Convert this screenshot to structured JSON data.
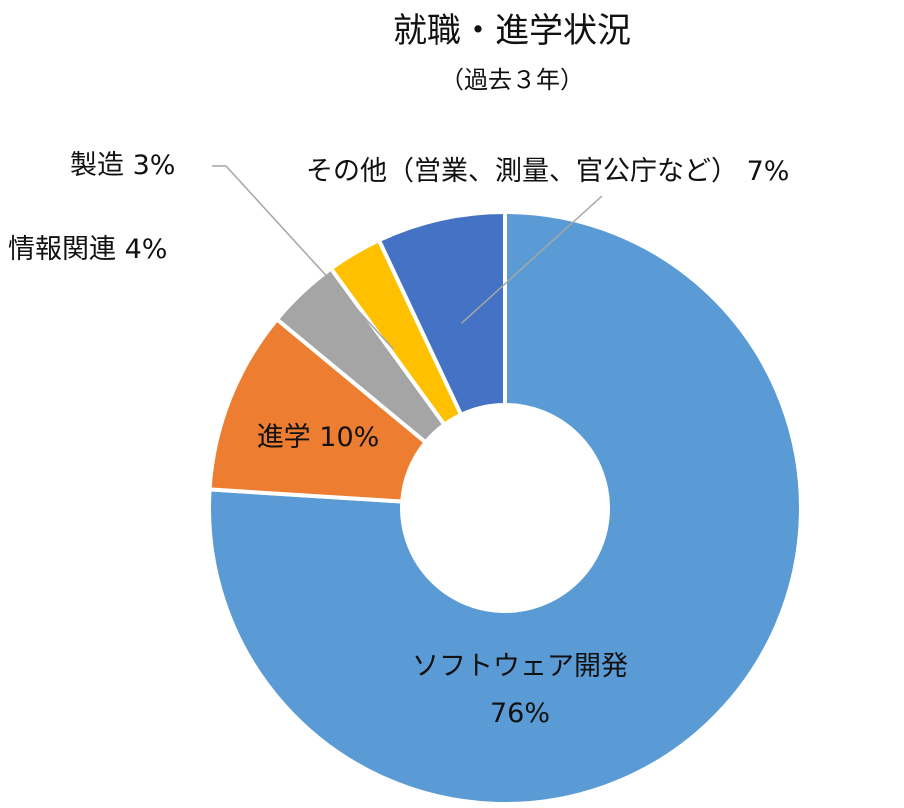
{
  "chart_data": {
    "type": "pie",
    "title": "就職・進学状況",
    "subtitle": "（過去３年）",
    "donut": true,
    "slices": [
      {
        "label": "ソフトウェア開発",
        "value": 76,
        "value_text": "76%",
        "color": "#5B9BD5"
      },
      {
        "label": "進学",
        "value": 10,
        "value_text": "10%",
        "color": "#ED7D31"
      },
      {
        "label": "情報関連",
        "value": 4,
        "value_text": "4%",
        "color": "#A5A5A5"
      },
      {
        "label": "製造",
        "value": 3,
        "value_text": "3%",
        "color": "#FFC000"
      },
      {
        "label": "その他（営業、測量、官公庁など）",
        "value": 7,
        "value_text": "7%",
        "color": "#4472C4"
      }
    ]
  }
}
